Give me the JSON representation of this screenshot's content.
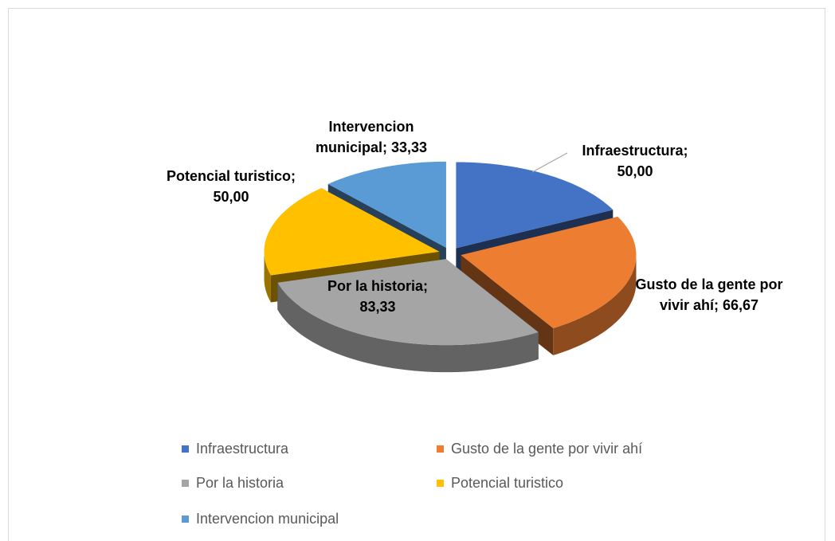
{
  "chart_data": {
    "type": "pie3d",
    "categories": [
      "Infraestructura",
      "Gusto de la gente por vivir ahí",
      "Por la historia",
      "Potencial turistico",
      "Intervencion municipal"
    ],
    "values": [
      50,
      66.67,
      83.33,
      50,
      33.33
    ],
    "value_labels": [
      "Infraestructura; 50,00",
      "Gusto de la gente por vivir ahí; 66,67",
      "Por la historia; 83,33",
      "Potencial turistico; 50,00",
      "Intervencion municipal; 33,33"
    ],
    "colors": [
      "#4472c4",
      "#ed7d31",
      "#a5a5a5",
      "#ffc000",
      "#5b9bd5"
    ],
    "legend": "bottom"
  }
}
